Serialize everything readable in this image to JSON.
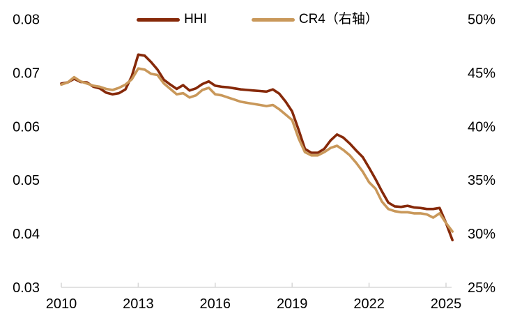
{
  "chart_data": {
    "type": "line",
    "title": "",
    "legend_position": "top-center",
    "grid": false,
    "x_axis": {
      "tick_labels": [
        "2010",
        "2013",
        "2016",
        "2019",
        "2022",
        "2025"
      ],
      "tick_years": [
        2010,
        2013,
        2016,
        2019,
        2022,
        2025
      ],
      "range": [
        2010,
        2025.25
      ]
    },
    "left_axis": {
      "labels": [
        "0.08",
        "0.07",
        "0.06",
        "0.05",
        "0.04",
        "0.03"
      ],
      "values": [
        0.08,
        0.07,
        0.06,
        0.05,
        0.04,
        0.03
      ],
      "min": 0.03,
      "max": 0.08
    },
    "right_axis": {
      "labels": [
        "50%",
        "45%",
        "40%",
        "35%",
        "30%",
        "25%"
      ],
      "values": [
        50,
        45,
        40,
        35,
        30,
        25
      ],
      "min": 25,
      "max": 50
    },
    "x": [
      2010,
      2010.25,
      2010.5,
      2010.75,
      2011,
      2011.25,
      2011.5,
      2011.75,
      2012,
      2012.25,
      2012.5,
      2012.75,
      2013,
      2013.25,
      2013.5,
      2013.75,
      2014,
      2014.25,
      2014.5,
      2014.75,
      2015,
      2015.25,
      2015.5,
      2015.75,
      2016,
      2016.25,
      2016.5,
      2016.75,
      2017,
      2017.25,
      2017.5,
      2017.75,
      2018,
      2018.25,
      2018.5,
      2018.75,
      2019,
      2019.25,
      2019.5,
      2019.75,
      2020,
      2020.25,
      2020.5,
      2020.75,
      2021,
      2021.25,
      2021.5,
      2021.75,
      2022,
      2022.25,
      2022.5,
      2022.75,
      2023,
      2023.25,
      2023.5,
      2023.75,
      2024,
      2024.25,
      2024.5,
      2024.75,
      2025,
      2025.25
    ],
    "series": [
      {
        "name": "HHI",
        "axis": "left",
        "color": "#862909",
        "values": [
          0.068,
          0.0682,
          0.0689,
          0.0683,
          0.0682,
          0.0674,
          0.0671,
          0.0663,
          0.066,
          0.0662,
          0.0669,
          0.0694,
          0.0734,
          0.0732,
          0.072,
          0.0706,
          0.0687,
          0.0678,
          0.067,
          0.0677,
          0.0667,
          0.0671,
          0.0679,
          0.0684,
          0.0676,
          0.0674,
          0.0673,
          0.0671,
          0.0669,
          0.0668,
          0.0667,
          0.0666,
          0.0665,
          0.0669,
          0.0661,
          0.0646,
          0.0628,
          0.0594,
          0.0558,
          0.0551,
          0.0551,
          0.0558,
          0.0574,
          0.0585,
          0.0579,
          0.0568,
          0.0555,
          0.0543,
          0.0523,
          0.0502,
          0.0479,
          0.0458,
          0.0451,
          0.045,
          0.0452,
          0.0449,
          0.0448,
          0.0446,
          0.0446,
          0.0448,
          0.042,
          0.0388
        ]
      },
      {
        "name": "CR4（右轴）",
        "axis": "right",
        "color": "#C9985A",
        "values": [
          43.9,
          44.1,
          44.6,
          44.2,
          44.0,
          43.8,
          43.7,
          43.5,
          43.4,
          43.6,
          43.9,
          44.4,
          45.4,
          45.3,
          44.9,
          44.8,
          44.0,
          43.5,
          43.0,
          43.1,
          42.7,
          42.9,
          43.4,
          43.6,
          43.0,
          42.9,
          42.7,
          42.5,
          42.3,
          42.2,
          42.1,
          42.0,
          41.9,
          42.0,
          41.6,
          41.1,
          40.6,
          38.9,
          37.6,
          37.3,
          37.3,
          37.6,
          38.0,
          38.2,
          37.8,
          37.3,
          36.6,
          35.8,
          34.8,
          34.2,
          33.0,
          32.3,
          32.1,
          32.0,
          32.0,
          31.9,
          31.9,
          31.8,
          31.5,
          31.9,
          31.0,
          30.2
        ]
      }
    ]
  },
  "colors": {
    "axis_line": "#D8D8D8",
    "text": "#000000",
    "background": "#FFFFFF"
  }
}
